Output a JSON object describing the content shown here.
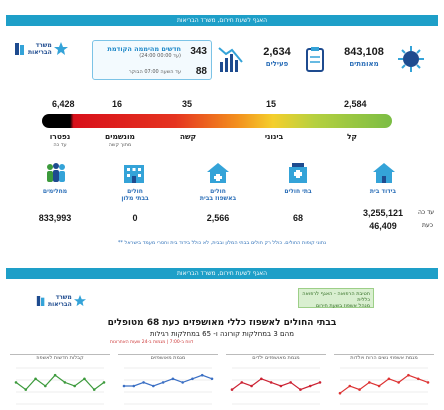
{
  "header_band": "האגף לשעת חירום, משרד הבריאות",
  "logo": {
    "line1": "משרד",
    "line2": "הבריאות"
  },
  "stats": {
    "confirmed": {
      "value": "843,108",
      "label": "מאומתים"
    },
    "active": {
      "value": "2,634",
      "label": "פעילים"
    },
    "new_box": {
      "title": "חדשים מהיממה הקודמת",
      "time1": "(24:00 עד 00:00)",
      "value1": "343",
      "time2": "עד השעה 07:00 הבוקר",
      "value2": "88"
    }
  },
  "severity": {
    "segments": [
      {
        "key": "dead",
        "value": "6,428",
        "label": "נפטרו",
        "sub": "עד כה"
      },
      {
        "key": "ventilated",
        "value": "16",
        "label": "מונשמים",
        "sub": "מתוך קשה"
      },
      {
        "key": "serious",
        "value": "35",
        "label": "קשה",
        "sub": ""
      },
      {
        "key": "moderate",
        "value": "15",
        "label": "בינוני",
        "sub": ""
      },
      {
        "key": "mild",
        "value": "2,584",
        "label": "קל",
        "sub": ""
      }
    ]
  },
  "facilities": {
    "side_label_top": "עד כה",
    "side_label_bottom": "כעת",
    "items": [
      {
        "key": "recovered",
        "label": "מחלימים",
        "label2": "",
        "value": "833,993"
      },
      {
        "key": "hotels",
        "label": "חולים",
        "label2": "בבתי מלון",
        "value": "0"
      },
      {
        "key": "home_hosp",
        "label": "חולים",
        "label2": "באשפוז בבית",
        "value": "2,566"
      },
      {
        "key": "hospital",
        "label": "בתי חולים",
        "label2": "",
        "value": "68"
      },
      {
        "key": "home_iso",
        "label": "בידוד בית",
        "label2": "",
        "value": "3,255,121",
        "value2": "46,409"
      }
    ]
  },
  "footnote": "** נתוני קופות החולים. כולל רק חולים בבתי המלון ובבית, לא כולל בידוד בית וחסרי מעמד בישראל",
  "mid_band": "האגף לשעת חירום, משרד הבריאות",
  "management": {
    "line1": "חטיבת הרפואה - האגף לרפואה כללית",
    "line2": "מנהל אשפוז בשעת חירום"
  },
  "hospitals": {
    "title": "בבתי החולים לאשפוז כללי מאושפזים כעת 68 מטופלים",
    "subtitle": "מהם 3 במחלקות קורונה ו- 65 במחלקות רגילות",
    "note": "דווח ב-7:00 | מגמות ב-24 שעות האחרונות"
  },
  "mini_charts": [
    {
      "title": "מגמת אשפוזי נשים הרות ויולדות",
      "color": "#d33",
      "points": [
        3,
        5,
        4,
        6,
        5,
        7,
        6,
        8,
        7,
        6
      ]
    },
    {
      "title": "מגמת מאושפזים ילדים",
      "color": "#c23",
      "points": [
        4,
        6,
        5,
        7,
        6,
        5,
        6,
        4,
        5,
        6
      ]
    },
    {
      "title": "מגמת מאושפזים",
      "color": "#3a6fc4",
      "points": [
        5,
        5,
        6,
        5,
        6,
        7,
        6,
        7,
        8,
        7
      ]
    },
    {
      "title": "קבלות חדשות לאשפוז",
      "color": "#3c9a3c",
      "points": [
        6,
        4,
        7,
        5,
        8,
        6,
        5,
        7,
        4,
        6
      ]
    }
  ]
}
